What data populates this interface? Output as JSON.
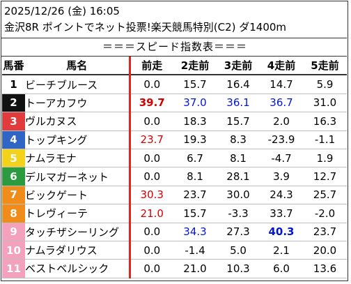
{
  "header": {
    "datetime": "2025/12/26 (金) 16:05",
    "race": "金沢8R ポイントでネット投票!楽天競馬特別(C2) ダ1400m"
  },
  "subtitle": "＝＝＝スピード指数表＝＝＝",
  "colors": {
    "red_text": "#d40000",
    "blue_text": "#0015d9",
    "frame_border": "#333333",
    "divider_red": "#e8221a"
  },
  "columns": [
    "馬番",
    "馬名",
    "前走",
    "2走前",
    "3走前",
    "4走前",
    "5走前"
  ],
  "rows": [
    {
      "num": "1",
      "name": "ビーチブルース",
      "bg": "#ffffff",
      "fg": "#000000",
      "vals": [
        "0.0",
        "15.7",
        "16.4",
        "14.7",
        "5.9"
      ],
      "styles": [
        "",
        "",
        "",
        "",
        ""
      ]
    },
    {
      "num": "2",
      "name": "トーアカフウ",
      "bg": "#111111",
      "fg": "#ffffff",
      "vals": [
        "39.7",
        "37.0",
        "36.1",
        "36.7",
        "31.0"
      ],
      "styles": [
        "red bold",
        "blue",
        "blue",
        "blue",
        ""
      ]
    },
    {
      "num": "3",
      "name": "ヴルカヌス",
      "bg": "#e23b3b",
      "fg": "#ffffff",
      "vals": [
        "0.0",
        "18.3",
        "15.7",
        "2.0",
        "16.3"
      ],
      "styles": [
        "",
        "",
        "",
        "",
        ""
      ]
    },
    {
      "num": "4",
      "name": "トップキング",
      "bg": "#2f66c4",
      "fg": "#ffffff",
      "vals": [
        "23.7",
        "19.3",
        "8.3",
        "-23.9",
        "-1.1"
      ],
      "styles": [
        "red",
        "",
        "",
        "",
        ""
      ]
    },
    {
      "num": "5",
      "name": "ナムラモナ",
      "bg": "#f2d21b",
      "fg": "#ffffff",
      "vals": [
        "0.0",
        "6.7",
        "8.1",
        "-4.7",
        "1.9"
      ],
      "styles": [
        "",
        "",
        "",
        "",
        ""
      ]
    },
    {
      "num": "6",
      "name": "デルマガーネット",
      "bg": "#2c9b3f",
      "fg": "#ffffff",
      "vals": [
        "0.0",
        "8.1",
        "28.1",
        "3.9",
        "12.7"
      ],
      "styles": [
        "",
        "",
        "",
        "",
        ""
      ]
    },
    {
      "num": "7",
      "name": "ビックゲート",
      "bg": "#f08c1a",
      "fg": "#ffffff",
      "vals": [
        "30.3",
        "23.7",
        "30.0",
        "24.3",
        "25.7"
      ],
      "styles": [
        "red",
        "",
        "",
        "",
        ""
      ]
    },
    {
      "num": "8",
      "name": "トレヴィーテ",
      "bg": "#f08c1a",
      "fg": "#ffffff",
      "vals": [
        "21.0",
        "15.7",
        "-3.3",
        "33.7",
        "-2.0"
      ],
      "styles": [
        "red",
        "",
        "",
        "",
        ""
      ]
    },
    {
      "num": "9",
      "name": "タッチザシーリング",
      "bg": "#f3a1bc",
      "fg": "#ffffff",
      "vals": [
        "0.0",
        "34.3",
        "27.3",
        "40.3",
        "23.7"
      ],
      "styles": [
        "",
        "blue",
        "",
        "blue bold",
        ""
      ]
    },
    {
      "num": "10",
      "name": "ナムラダリウス",
      "bg": "#f3a1bc",
      "fg": "#ffffff",
      "vals": [
        "0.0",
        "-1.4",
        "5.0",
        "2.1",
        "20.0"
      ],
      "styles": [
        "",
        "",
        "",
        "",
        ""
      ]
    },
    {
      "num": "11",
      "name": "ベストベルシック",
      "bg": "#f3a1bc",
      "fg": "#ffffff",
      "vals": [
        "0.0",
        "21.0",
        "10.3",
        "6.0",
        "13.6"
      ],
      "styles": [
        "",
        "",
        "",
        "",
        ""
      ]
    }
  ]
}
